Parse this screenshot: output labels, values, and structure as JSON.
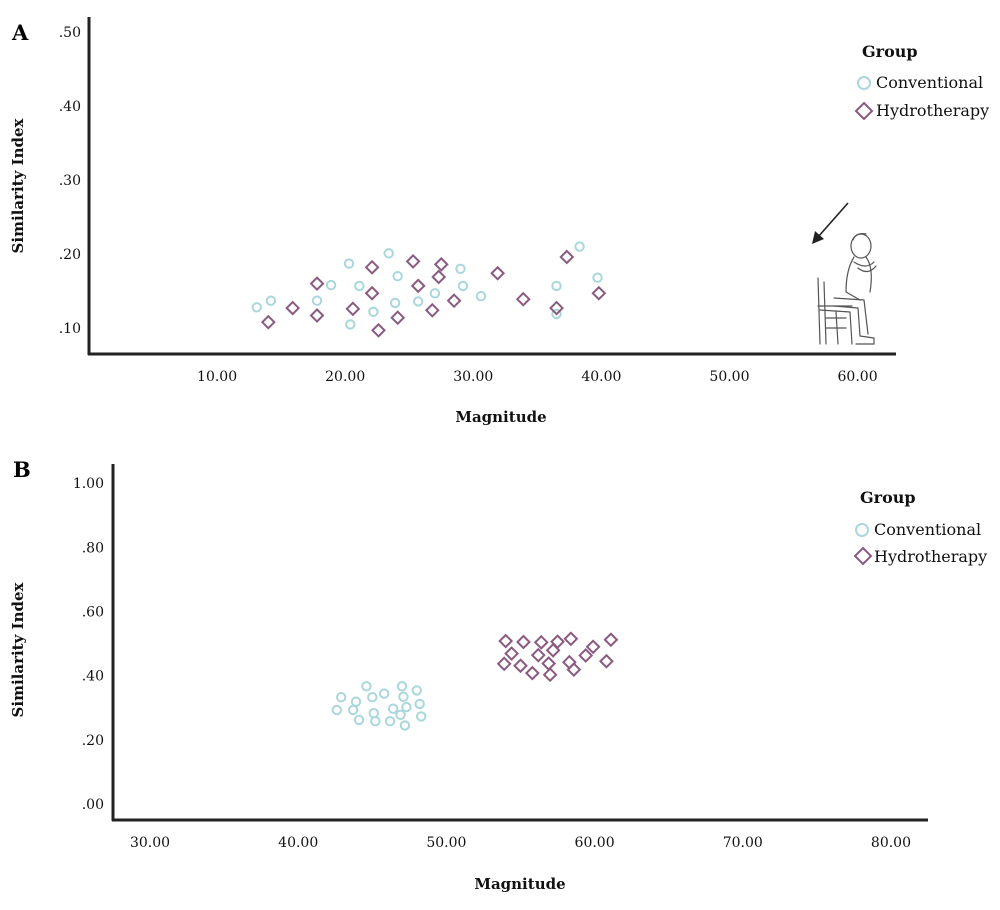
{
  "colors": {
    "conventional": "#a9d7dc",
    "hydrotherapy": "#8b5a80",
    "axis": "#222222"
  },
  "chart_data": [
    {
      "panel": "A",
      "type": "scatter",
      "xlabel": "Magnitude",
      "ylabel": "Similarity Index",
      "xlim": [
        0,
        63
      ],
      "ylim": [
        0.065,
        0.52
      ],
      "x_ticks": [
        10,
        20,
        30,
        40,
        50,
        60
      ],
      "x_tick_labels": [
        "10.00",
        "20.00",
        "30.00",
        "40.00",
        "50.00",
        "60.00"
      ],
      "y_ticks": [
        0.1,
        0.2,
        0.3,
        0.4,
        0.5
      ],
      "y_tick_labels": [
        ".10",
        ".20",
        ".30",
        ".40",
        ".50"
      ],
      "legend": {
        "title": "Group",
        "position": "top-right"
      },
      "illustration": "seated-child-figure",
      "series": [
        {
          "name": "Conventional",
          "marker": "circle",
          "color": "#a9d7dc",
          "x": [
            13.1,
            14.2,
            17.8,
            18.9,
            20.3,
            20.4,
            21.1,
            22.2,
            23.4,
            23.9,
            24.1,
            25.7,
            27.0,
            29.0,
            29.2,
            30.6,
            36.5,
            36.5,
            38.3,
            39.7
          ],
          "y": [
            0.128,
            0.137,
            0.137,
            0.158,
            0.187,
            0.105,
            0.157,
            0.122,
            0.201,
            0.134,
            0.17,
            0.136,
            0.147,
            0.18,
            0.157,
            0.143,
            0.119,
            0.157,
            0.21,
            0.168
          ]
        },
        {
          "name": "Hydrotherapy",
          "marker": "diamond",
          "color": "#8b5a80",
          "x": [
            14.0,
            15.9,
            17.8,
            17.8,
            20.6,
            22.1,
            22.1,
            22.6,
            24.1,
            25.3,
            25.7,
            26.8,
            27.3,
            27.5,
            28.5,
            31.9,
            33.9,
            36.5,
            37.3,
            39.8
          ],
          "y": [
            0.108,
            0.127,
            0.117,
            0.16,
            0.126,
            0.147,
            0.182,
            0.097,
            0.114,
            0.19,
            0.157,
            0.124,
            0.169,
            0.186,
            0.137,
            0.174,
            0.139,
            0.127,
            0.196,
            0.147
          ]
        }
      ]
    },
    {
      "panel": "B",
      "type": "scatter",
      "xlabel": "Magnitude",
      "ylabel": "Similarity Index",
      "xlim": [
        27.5,
        82.5
      ],
      "ylim": [
        -0.05,
        1.06
      ],
      "x_ticks": [
        30,
        40,
        50,
        60,
        70,
        80
      ],
      "x_tick_labels": [
        "30.00",
        "40.00",
        "50.00",
        "60.00",
        "70.00",
        "80.00"
      ],
      "y_ticks": [
        0,
        0.2,
        0.4,
        0.6,
        0.8,
        1.0
      ],
      "y_tick_labels": [
        ".00",
        ".20",
        ".40",
        ".60",
        ".80",
        "1.00"
      ],
      "legend": {
        "title": "Group",
        "position": "top-right"
      },
      "series": [
        {
          "name": "Conventional",
          "marker": "circle",
          "color": "#a9d7dc",
          "x": [
            42.6,
            42.9,
            43.7,
            43.9,
            44.1,
            44.6,
            45.0,
            45.1,
            45.2,
            45.8,
            46.2,
            46.4,
            46.9,
            47.0,
            47.1,
            47.2,
            47.3,
            48.0,
            48.2,
            48.3
          ],
          "y": [
            0.293,
            0.333,
            0.293,
            0.319,
            0.262,
            0.367,
            0.333,
            0.283,
            0.258,
            0.344,
            0.258,
            0.297,
            0.278,
            0.367,
            0.334,
            0.245,
            0.302,
            0.354,
            0.312,
            0.273
          ]
        },
        {
          "name": "Hydrotherapy",
          "marker": "diamond",
          "color": "#8b5a80",
          "x": [
            53.9,
            54.0,
            54.4,
            55.0,
            55.2,
            55.8,
            56.2,
            56.4,
            56.9,
            57.0,
            57.2,
            57.5,
            58.3,
            58.4,
            58.6,
            59.4,
            59.9,
            60.8,
            61.1
          ],
          "y": [
            0.437,
            0.508,
            0.469,
            0.431,
            0.505,
            0.408,
            0.464,
            0.504,
            0.438,
            0.403,
            0.479,
            0.506,
            0.442,
            0.515,
            0.419,
            0.463,
            0.49,
            0.445,
            0.512
          ]
        }
      ]
    }
  ]
}
